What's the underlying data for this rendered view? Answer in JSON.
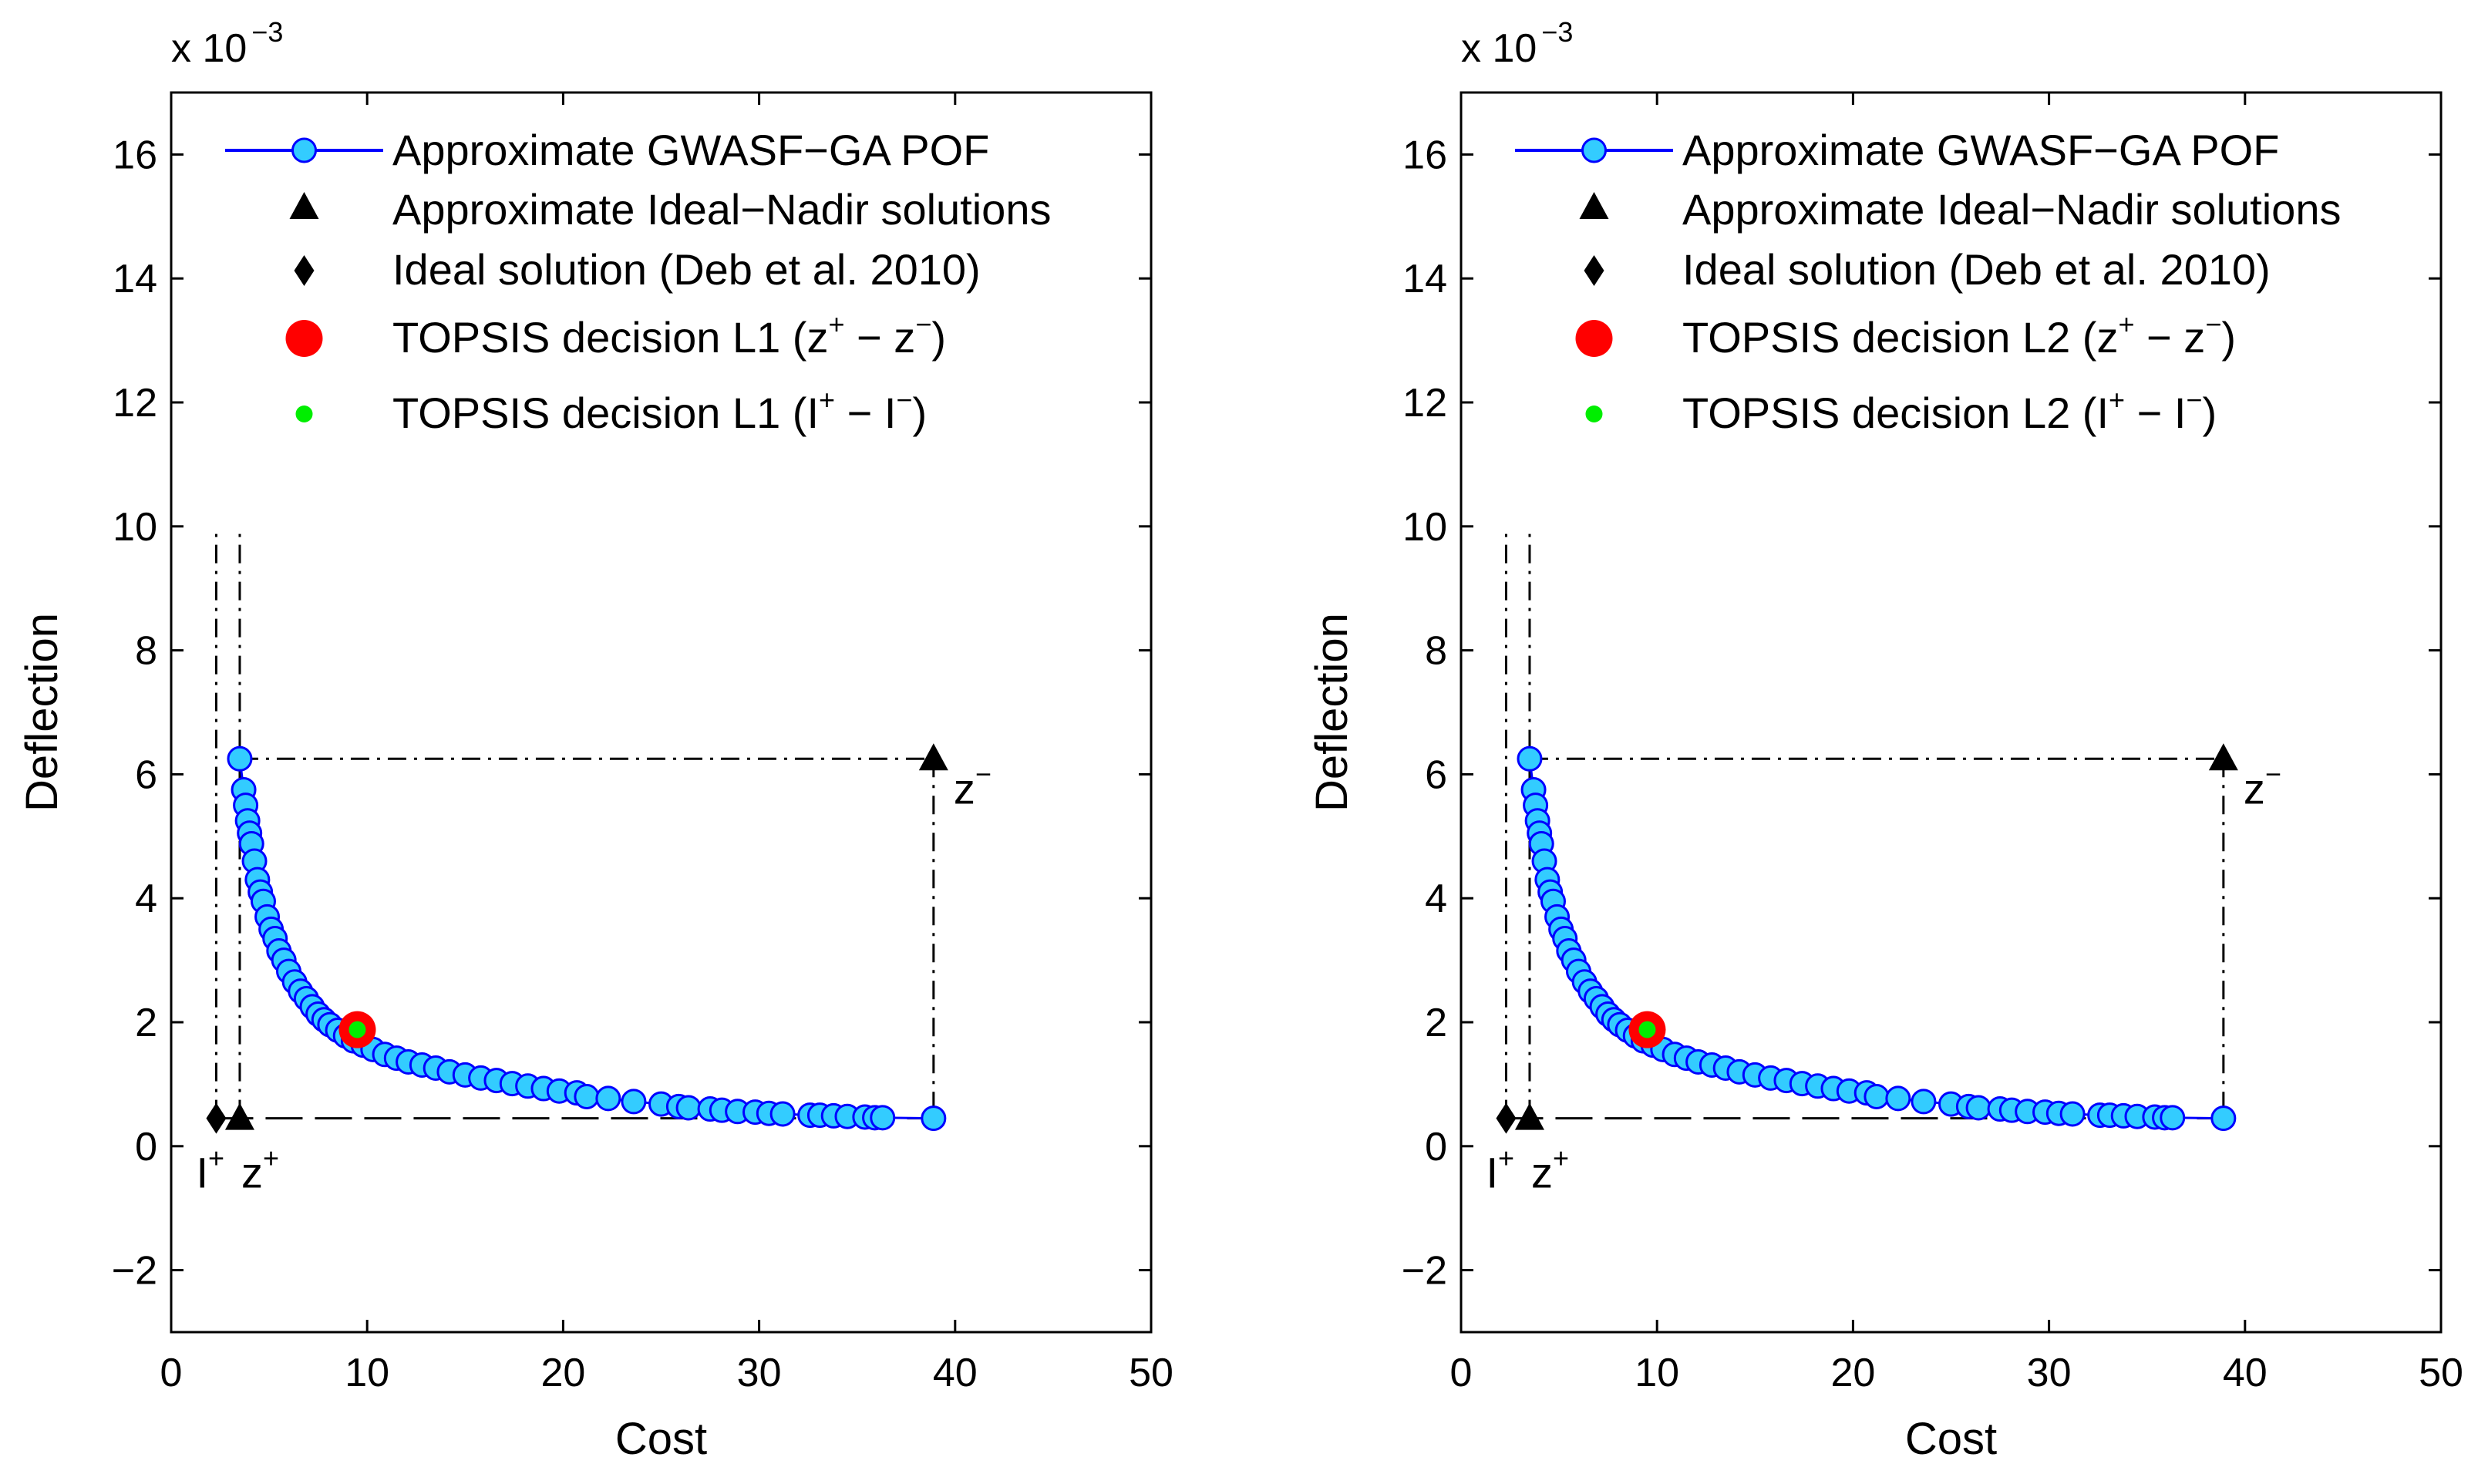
{
  "chart_data": [
    {
      "type": "scatter",
      "xlabel": "Cost",
      "ylabel": "Deflection",
      "exponent_label": "x 10",
      "exponent_power": "−3",
      "xlim": [
        0,
        50
      ],
      "ylim": [
        -3,
        17
      ],
      "xticks": [
        "0",
        "10",
        "20",
        "30",
        "40",
        "50"
      ],
      "yticks": [
        "−2",
        "0",
        "2",
        "4",
        "6",
        "8",
        "10",
        "12",
        "14",
        "16"
      ],
      "legend": {
        "position": "top-right",
        "entries": [
          "Approximate GWASF−GA POF",
          "Approximate Ideal−Nadir solutions",
          "Ideal solution (Deb et al. 2010)"
        ],
        "topsis_zlabel": "TOPSIS decision L1 (z",
        "topsis_ilabel": "TOPSIS decision L1 (I"
      },
      "annotations": {
        "ideal_I": "I",
        "ideal_z": "z",
        "nadir_z": "z",
        "plus": "+",
        "minus": "−"
      },
      "series": [
        {
          "name": "Approximate GWASF−GA POF",
          "x": [
            3.5,
            3.7,
            3.8,
            3.9,
            4.0,
            4.1,
            4.25,
            4.4,
            4.55,
            4.7,
            4.9,
            5.1,
            5.3,
            5.5,
            5.75,
            6.0,
            6.3,
            6.6,
            6.9,
            7.2,
            7.5,
            7.8,
            8.1,
            8.5,
            8.9,
            9.3,
            9.8,
            10.3,
            10.9,
            11.5,
            12.1,
            12.8,
            13.5,
            14.2,
            15.0,
            15.8,
            16.6,
            17.4,
            18.2,
            19.0,
            19.8,
            20.7,
            21.2,
            22.3,
            23.6,
            25.0,
            25.9,
            26.4,
            27.5,
            28.1,
            28.9,
            29.8,
            30.5,
            31.2,
            32.6,
            33.1,
            33.8,
            34.5,
            35.4,
            35.9,
            36.3,
            38.9
          ],
          "y": [
            6.25,
            5.75,
            5.5,
            5.25,
            5.05,
            4.88,
            4.6,
            4.3,
            4.1,
            3.95,
            3.7,
            3.5,
            3.35,
            3.15,
            3.0,
            2.82,
            2.65,
            2.5,
            2.38,
            2.25,
            2.13,
            2.04,
            1.96,
            1.87,
            1.78,
            1.7,
            1.63,
            1.56,
            1.48,
            1.42,
            1.36,
            1.31,
            1.26,
            1.2,
            1.15,
            1.1,
            1.06,
            1.01,
            0.97,
            0.93,
            0.89,
            0.86,
            0.8,
            0.77,
            0.72,
            0.68,
            0.64,
            0.62,
            0.6,
            0.58,
            0.56,
            0.55,
            0.53,
            0.52,
            0.5,
            0.5,
            0.49,
            0.48,
            0.47,
            0.46,
            0.46,
            0.45
          ]
        },
        {
          "name": "Approximate Ideal−Nadir solutions",
          "x": [
            3.5,
            38.9
          ],
          "y": [
            0.45,
            6.25
          ]
        },
        {
          "name": "Ideal solution (Deb et al. 2010)",
          "x": [
            2.3
          ],
          "y": [
            0.45
          ]
        },
        {
          "name": "TOPSIS decision L1 (z+ − z−)",
          "x": [
            9.5
          ],
          "y": [
            1.88
          ]
        },
        {
          "name": "TOPSIS decision L1 (I+ − I−)",
          "x": [
            9.5
          ],
          "y": [
            1.88
          ]
        }
      ]
    },
    {
      "type": "scatter",
      "xlabel": "Cost",
      "ylabel": "Deflection",
      "exponent_label": "x 10",
      "exponent_power": "−3",
      "xlim": [
        0,
        50
      ],
      "ylim": [
        -3,
        17
      ],
      "xticks": [
        "0",
        "10",
        "20",
        "30",
        "40",
        "50"
      ],
      "yticks": [
        "−2",
        "0",
        "2",
        "4",
        "6",
        "8",
        "10",
        "12",
        "14",
        "16"
      ],
      "legend": {
        "position": "top-right",
        "entries": [
          "Approximate GWASF−GA POF",
          "Approximate Ideal−Nadir solutions",
          "Ideal solution (Deb et al. 2010)"
        ],
        "topsis_zlabel": "TOPSIS decision L2 (z",
        "topsis_ilabel": "TOPSIS decision L2 (I"
      },
      "annotations": {
        "ideal_I": "I",
        "ideal_z": "z",
        "nadir_z": "z",
        "plus": "+",
        "minus": "−"
      },
      "series": [
        {
          "name": "Approximate GWASF−GA POF",
          "x": [
            3.5,
            3.7,
            3.8,
            3.9,
            4.0,
            4.1,
            4.25,
            4.4,
            4.55,
            4.7,
            4.9,
            5.1,
            5.3,
            5.5,
            5.75,
            6.0,
            6.3,
            6.6,
            6.9,
            7.2,
            7.5,
            7.8,
            8.1,
            8.5,
            8.9,
            9.3,
            9.8,
            10.3,
            10.9,
            11.5,
            12.1,
            12.8,
            13.5,
            14.2,
            15.0,
            15.8,
            16.6,
            17.4,
            18.2,
            19.0,
            19.8,
            20.7,
            21.2,
            22.3,
            23.6,
            25.0,
            25.9,
            26.4,
            27.5,
            28.1,
            28.9,
            29.8,
            30.5,
            31.2,
            32.6,
            33.1,
            33.8,
            34.5,
            35.4,
            35.9,
            36.3,
            38.9
          ],
          "y": [
            6.25,
            5.75,
            5.5,
            5.25,
            5.05,
            4.88,
            4.6,
            4.3,
            4.1,
            3.95,
            3.7,
            3.5,
            3.35,
            3.15,
            3.0,
            2.82,
            2.65,
            2.5,
            2.38,
            2.25,
            2.13,
            2.04,
            1.96,
            1.87,
            1.78,
            1.7,
            1.63,
            1.56,
            1.48,
            1.42,
            1.36,
            1.31,
            1.26,
            1.2,
            1.15,
            1.1,
            1.06,
            1.01,
            0.97,
            0.93,
            0.89,
            0.86,
            0.8,
            0.77,
            0.72,
            0.68,
            0.64,
            0.62,
            0.6,
            0.58,
            0.56,
            0.55,
            0.53,
            0.52,
            0.5,
            0.5,
            0.49,
            0.48,
            0.47,
            0.46,
            0.46,
            0.45
          ]
        },
        {
          "name": "Approximate Ideal−Nadir solutions",
          "x": [
            3.5,
            38.9
          ],
          "y": [
            0.45,
            6.25
          ]
        },
        {
          "name": "Ideal solution (Deb et al. 2010)",
          "x": [
            2.3
          ],
          "y": [
            0.45
          ]
        },
        {
          "name": "TOPSIS decision L2 (z+ − z−)",
          "x": [
            9.5
          ],
          "y": [
            1.88
          ]
        },
        {
          "name": "TOPSIS decision L2 (I+ − I−)",
          "x": [
            9.5
          ],
          "y": [
            1.88
          ]
        }
      ]
    }
  ],
  "colors": {
    "pof_fill": "#33ccff",
    "pof_edge": "#0000ff",
    "topsis_z": "#ff0000",
    "topsis_i": "#00ee00",
    "black": "#000000"
  }
}
